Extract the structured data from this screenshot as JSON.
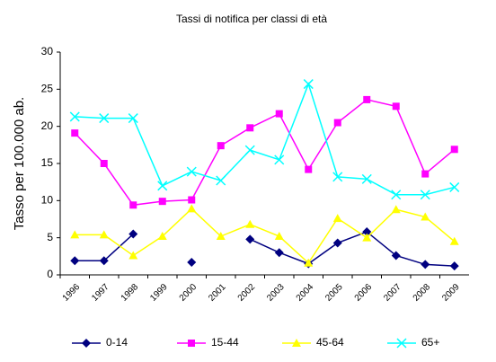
{
  "chart_data": {
    "type": "line",
    "title": "Tassi di notifica per classi di età",
    "y_label": "Tasso per 100.000 ab.",
    "categories": [
      "1996",
      "1997",
      "1998",
      "1999",
      "2000",
      "2001",
      "2002",
      "2003",
      "2004",
      "2005",
      "2006",
      "2007",
      "2008",
      "2009"
    ],
    "series": [
      {
        "name": "0-14",
        "color": "#000080",
        "marker": "diamond",
        "values": [
          1.9,
          1.9,
          5.5,
          null,
          1.7,
          null,
          4.8,
          3.0,
          1.5,
          4.3,
          5.8,
          2.6,
          1.4,
          1.2
        ]
      },
      {
        "name": "15-44",
        "color": "#ff00ff",
        "marker": "square",
        "values": [
          19.1,
          15.0,
          9.4,
          9.9,
          10.1,
          17.4,
          19.8,
          21.7,
          14.2,
          20.5,
          23.6,
          22.7,
          13.6,
          16.9
        ]
      },
      {
        "name": "45-64",
        "color": "#ffff00",
        "marker": "triangle",
        "values": [
          5.4,
          5.4,
          2.6,
          5.2,
          8.9,
          5.2,
          6.8,
          5.2,
          1.6,
          7.6,
          5.0,
          8.8,
          7.8,
          4.5
        ]
      },
      {
        "name": "65+",
        "color": "#00ffff",
        "marker": "x",
        "values": [
          21.3,
          21.1,
          21.1,
          12.0,
          13.9,
          12.7,
          16.8,
          15.5,
          25.7,
          13.2,
          12.9,
          10.8,
          10.8,
          11.8
        ]
      }
    ],
    "ylim": [
      0,
      30
    ],
    "yticks": [
      0,
      5,
      10,
      15,
      20,
      25,
      30
    ],
    "grid": false,
    "legend": "bottom"
  }
}
